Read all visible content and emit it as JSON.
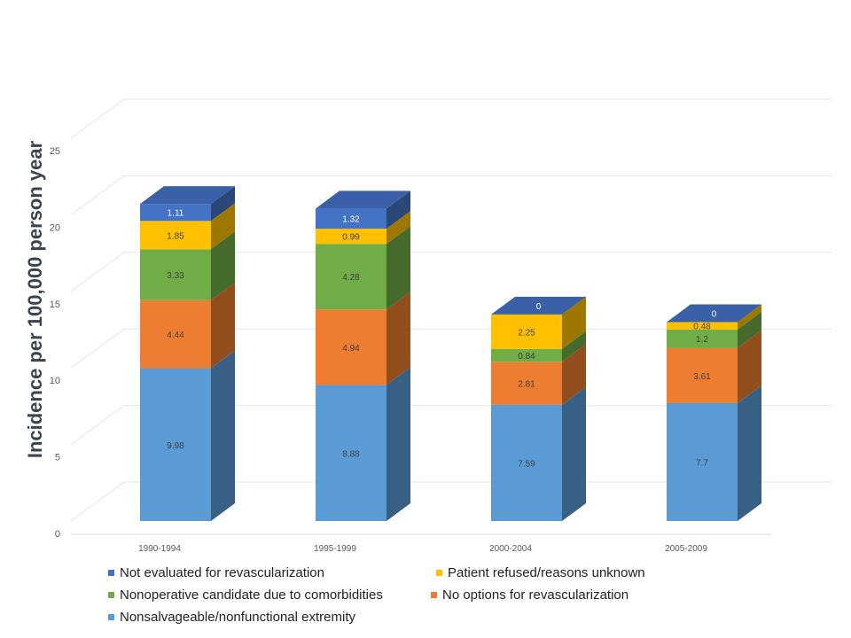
{
  "chart_data": {
    "type": "bar",
    "stacked": true,
    "three_d": true,
    "title": "",
    "xlabel": "",
    "ylabel": "Incidence per 100,000 person year",
    "ylim": [
      0,
      25
    ],
    "yticks": [
      "0",
      "5",
      "10",
      "15",
      "20",
      "25"
    ],
    "categories": [
      "1990-1994",
      "1995-1999",
      "2000-2004",
      "2005-2009"
    ],
    "series": [
      {
        "name": "Nonsalvageable/nonfunctional extremity",
        "color": "#5b9bd5",
        "values": [
          9.98,
          8.88,
          7.59,
          7.7
        ],
        "labels": [
          "9.98",
          "8.88",
          "7.59",
          "7.7"
        ]
      },
      {
        "name": "No options for revascularization",
        "color": "#ed7d31",
        "values": [
          4.44,
          4.94,
          2.81,
          3.61
        ],
        "labels": [
          "4.44",
          "4.94",
          "2.81",
          "3.61"
        ]
      },
      {
        "name": "Nonoperative candidate due to comorbidities",
        "color": "#70ad47",
        "values": [
          3.33,
          4.28,
          0.84,
          1.2
        ],
        "labels": [
          "3.33",
          "4.28",
          "0.84",
          "1.2"
        ]
      },
      {
        "name": "Patient refused/reasons unknown",
        "color": "#ffc000",
        "values": [
          1.85,
          0.99,
          2.25,
          0.48
        ],
        "labels": [
          "1.85",
          "0.99",
          "2.25",
          "0.48"
        ]
      },
      {
        "name": "Not evaluated for revascularization",
        "color": "#4472c4",
        "values": [
          1.11,
          1.32,
          0,
          0
        ],
        "labels": [
          "1.11",
          "1.32",
          "0",
          "0"
        ]
      }
    ],
    "grid": true,
    "legend_position": "bottom"
  },
  "legend": {
    "order": [
      4,
      3,
      2,
      1,
      0
    ]
  }
}
